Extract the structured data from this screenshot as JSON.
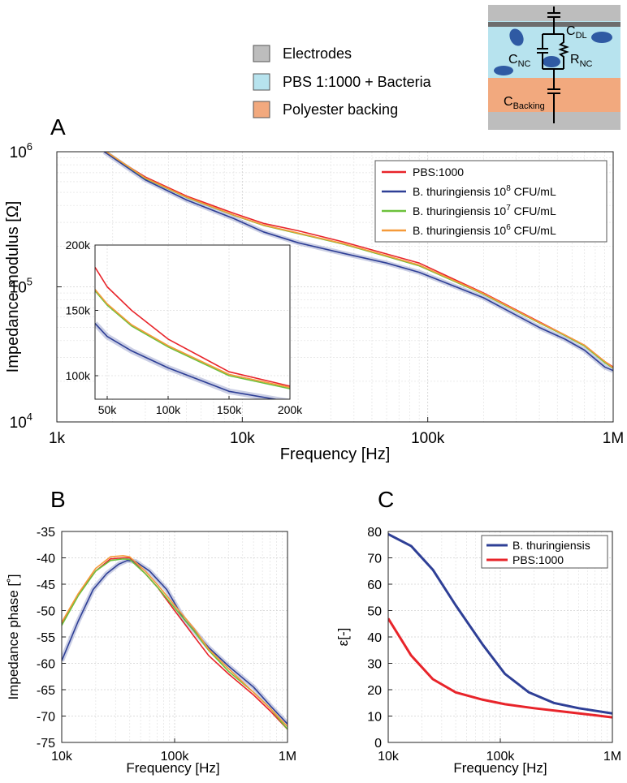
{
  "legend_top": {
    "items": [
      {
        "label": "Electrodes",
        "color": "#bdbdbd"
      },
      {
        "label": "PBS 1:1000 + Bacteria",
        "color": "#b7e3ee"
      },
      {
        "label": "Polyester backing",
        "color": "#f2a97e"
      }
    ]
  },
  "schematic": {
    "labels": {
      "cdl": {
        "base": "C",
        "sub": "DL"
      },
      "cnc": {
        "base": "C",
        "sub": "NC"
      },
      "rnc": {
        "base": "R",
        "sub": "NC"
      },
      "cbacking": {
        "base": "C",
        "sub": "Backing"
      }
    },
    "colors": {
      "electrode": "#bdbdbd",
      "pbs": "#b7e3ee",
      "backing": "#f2a97e",
      "bacteria": "#2f5aa3"
    }
  },
  "panel_letters": {
    "a": "A",
    "b": "B",
    "c": "C"
  },
  "chart_data": [
    {
      "id": "A",
      "type": "line",
      "xscale": "log",
      "yscale": "log",
      "xlabel": "Frequency [Hz]",
      "ylabel": "Impedance modulus [Ω]",
      "xlim": [
        1000,
        1000000
      ],
      "ylim": [
        10000,
        1000000
      ],
      "xticks": [
        {
          "v": 1000,
          "label": "1k"
        },
        {
          "v": 10000,
          "label": "10k"
        },
        {
          "v": 100000,
          "label": "100k"
        },
        {
          "v": 1000000,
          "label": "1M"
        }
      ],
      "yticks": [
        {
          "v": 10000,
          "base": "10",
          "exp": "4"
        },
        {
          "v": 100000,
          "base": "10",
          "exp": "5"
        },
        {
          "v": 1000000,
          "base": "10",
          "exp": "6"
        }
      ],
      "legend": [
        {
          "label": "PBS:1000",
          "color": "#e8242a"
        },
        {
          "label": "B. thuringiensis",
          "exp": "8",
          "unit": "CFU/mL",
          "color": "#2e3f96"
        },
        {
          "label": "B. thuringiensis",
          "exp": "7",
          "unit": "CFU/mL",
          "color": "#6cc13c"
        },
        {
          "label": "B. thuringiensis",
          "exp": "6",
          "unit": "CFU/mL",
          "color": "#f59a3a"
        }
      ],
      "series": [
        {
          "name": "PBS:1000",
          "color": "#e8242a",
          "points": [
            [
              1800,
              1000000
            ],
            [
              3000,
              650000
            ],
            [
              5000,
              470000
            ],
            [
              9000,
              350000
            ],
            [
              13000,
              295000
            ],
            [
              20000,
              260000
            ],
            [
              35000,
              215000
            ],
            [
              60000,
              175000
            ],
            [
              90000,
              150000
            ],
            [
              200000,
              90000
            ],
            [
              400000,
              55000
            ],
            [
              550000,
              44000
            ],
            [
              700000,
              37000
            ],
            [
              900000,
              28000
            ],
            [
              1000000,
              25500
            ]
          ]
        },
        {
          "name": "B. thuringiensis 10^8 CFU/mL",
          "color": "#2e3f96",
          "band": true,
          "points": [
            [
              1800,
              1000000
            ],
            [
              3000,
              620000
            ],
            [
              5000,
              440000
            ],
            [
              9000,
              320000
            ],
            [
              13000,
              255000
            ],
            [
              20000,
              212000
            ],
            [
              35000,
              177000
            ],
            [
              60000,
              150000
            ],
            [
              90000,
              128000
            ],
            [
              200000,
              83000
            ],
            [
              400000,
              50000
            ],
            [
              550000,
              41000
            ],
            [
              700000,
              34000
            ],
            [
              900000,
              25500
            ],
            [
              1000000,
              24000
            ]
          ]
        },
        {
          "name": "B. thuringiensis 10^7 CFU/mL",
          "color": "#6cc13c",
          "points": [
            [
              1850,
              1000000
            ],
            [
              3000,
              635000
            ],
            [
              5000,
              460000
            ],
            [
              9000,
              338000
            ],
            [
              13000,
              285000
            ],
            [
              20000,
              248000
            ],
            [
              35000,
              207000
            ],
            [
              60000,
              168000
            ],
            [
              90000,
              143000
            ],
            [
              200000,
              88000
            ],
            [
              400000,
              54000
            ],
            [
              550000,
              43500
            ],
            [
              700000,
              36500
            ],
            [
              900000,
              27500
            ],
            [
              1000000,
              25000
            ]
          ]
        },
        {
          "name": "B. thuringiensis 10^6 CFU/mL",
          "color": "#f59a3a",
          "points": [
            [
              1850,
              1000000
            ],
            [
              3000,
              640000
            ],
            [
              5000,
              462000
            ],
            [
              9000,
              340000
            ],
            [
              13000,
              287000
            ],
            [
              20000,
              250000
            ],
            [
              35000,
              209000
            ],
            [
              60000,
              170000
            ],
            [
              90000,
              145000
            ],
            [
              200000,
              89000
            ],
            [
              400000,
              54500
            ],
            [
              550000,
              44000
            ],
            [
              700000,
              37000
            ],
            [
              900000,
              28000
            ],
            [
              1000000,
              25200
            ]
          ]
        }
      ],
      "inset": {
        "xlim": [
          40000,
          200000
        ],
        "ylim": [
          82000,
          200000
        ],
        "xticks": [
          {
            "v": 50000,
            "label": "50k"
          },
          {
            "v": 100000,
            "label": "100k"
          },
          {
            "v": 150000,
            "label": "150k"
          },
          {
            "v": 200000,
            "label": "200k"
          }
        ],
        "yticks": [
          {
            "v": 100000,
            "label": "100k"
          },
          {
            "v": 150000,
            "label": "150k"
          },
          {
            "v": 200000,
            "label": "200k"
          }
        ],
        "series": [
          {
            "name": "PBS:1000",
            "color": "#e8242a",
            "points": [
              [
                40000,
                183000
              ],
              [
                50000,
                168000
              ],
              [
                70000,
                150000
              ],
              [
                100000,
                128000
              ],
              [
                150000,
                103000
              ],
              [
                200000,
                92000
              ]
            ]
          },
          {
            "name": "10^8",
            "color": "#2e3f96",
            "band": true,
            "points": [
              [
                40000,
                140000
              ],
              [
                50000,
                130000
              ],
              [
                70000,
                119000
              ],
              [
                100000,
                106000
              ],
              [
                150000,
                88000
              ],
              [
                200000,
                80000
              ]
            ]
          },
          {
            "name": "10^7",
            "color": "#6cc13c",
            "points": [
              [
                40000,
                165000
              ],
              [
                50000,
                154000
              ],
              [
                70000,
                138000
              ],
              [
                100000,
                122000
              ],
              [
                150000,
                100000
              ],
              [
                200000,
                90000
              ]
            ]
          },
          {
            "name": "10^6",
            "color": "#f59a3a",
            "points": [
              [
                40000,
                166000
              ],
              [
                50000,
                155000
              ],
              [
                70000,
                139000
              ],
              [
                100000,
                123000
              ],
              [
                150000,
                101000
              ],
              [
                200000,
                91000
              ]
            ]
          }
        ]
      }
    },
    {
      "id": "B",
      "type": "line",
      "xscale": "log",
      "xlabel": "Frequency [Hz]",
      "ylabel": "Impedance phase [˚]",
      "xlim": [
        10000,
        1000000
      ],
      "ylim": [
        -75,
        -35
      ],
      "xticks": [
        {
          "v": 10000,
          "label": "10k"
        },
        {
          "v": 100000,
          "label": "100k"
        },
        {
          "v": 1000000,
          "label": "1M"
        }
      ],
      "yticks": [
        {
          "v": -35,
          "label": "-35"
        },
        {
          "v": -40,
          "label": "-40"
        },
        {
          "v": -45,
          "label": "-45"
        },
        {
          "v": -50,
          "label": "-50"
        },
        {
          "v": -55,
          "label": "-55"
        },
        {
          "v": -60,
          "label": "-60"
        },
        {
          "v": -65,
          "label": "-65"
        },
        {
          "v": -70,
          "label": "-70"
        },
        {
          "v": -75,
          "label": "-75"
        }
      ],
      "series": [
        {
          "name": "PBS:1000",
          "color": "#e8242a",
          "points": [
            [
              10000,
              -52.5
            ],
            [
              14000,
              -47
            ],
            [
              20000,
              -42.5
            ],
            [
              27000,
              -40.2
            ],
            [
              35000,
              -40
            ],
            [
              40000,
              -40
            ],
            [
              55000,
              -43
            ],
            [
              70000,
              -45.5
            ],
            [
              100000,
              -50
            ],
            [
              150000,
              -55
            ],
            [
              200000,
              -58.5
            ],
            [
              300000,
              -62
            ],
            [
              500000,
              -66
            ],
            [
              700000,
              -69
            ],
            [
              1000000,
              -72.5
            ]
          ]
        },
        {
          "name": "10^8",
          "color": "#2e3f96",
          "band": true,
          "points": [
            [
              10000,
              -59.5
            ],
            [
              14000,
              -52
            ],
            [
              19000,
              -46
            ],
            [
              25000,
              -43
            ],
            [
              32000,
              -41.2
            ],
            [
              38000,
              -40.5
            ],
            [
              45000,
              -40.7
            ],
            [
              60000,
              -42.5
            ],
            [
              85000,
              -46
            ],
            [
              120000,
              -51.5
            ],
            [
              200000,
              -57
            ],
            [
              300000,
              -60.5
            ],
            [
              500000,
              -64.5
            ],
            [
              700000,
              -68
            ],
            [
              1000000,
              -71.5
            ]
          ]
        },
        {
          "name": "10^7",
          "color": "#6cc13c",
          "points": [
            [
              10000,
              -52.8
            ],
            [
              14000,
              -47.2
            ],
            [
              20000,
              -42.5
            ],
            [
              27000,
              -40.5
            ],
            [
              35000,
              -40.2
            ],
            [
              40000,
              -40.3
            ],
            [
              55000,
              -43
            ],
            [
              70000,
              -45.5
            ],
            [
              100000,
              -49.5
            ],
            [
              150000,
              -54
            ],
            [
              200000,
              -57.5
            ],
            [
              300000,
              -61.5
            ],
            [
              500000,
              -65.5
            ],
            [
              700000,
              -68.5
            ],
            [
              1000000,
              -72.5
            ]
          ]
        },
        {
          "name": "10^6",
          "color": "#f59a3a",
          "points": [
            [
              10000,
              -52.2
            ],
            [
              14000,
              -46.8
            ],
            [
              20000,
              -42
            ],
            [
              27000,
              -39.8
            ],
            [
              35000,
              -39.6
            ],
            [
              40000,
              -39.8
            ],
            [
              55000,
              -42.5
            ],
            [
              70000,
              -45
            ],
            [
              100000,
              -49
            ],
            [
              150000,
              -53.5
            ],
            [
              200000,
              -57.3
            ],
            [
              300000,
              -61
            ],
            [
              500000,
              -65.5
            ],
            [
              700000,
              -68.5
            ],
            [
              1000000,
              -72
            ]
          ]
        }
      ]
    },
    {
      "id": "C",
      "type": "line",
      "xscale": "log",
      "xlabel": "Frequency [Hz]",
      "ylabel": "ε[-]",
      "xlim": [
        10000,
        1000000
      ],
      "ylim": [
        0,
        80
      ],
      "xticks": [
        {
          "v": 10000,
          "label": "10k"
        },
        {
          "v": 100000,
          "label": "100k"
        },
        {
          "v": 1000000,
          "label": "1M"
        }
      ],
      "yticks": [
        {
          "v": 0,
          "label": "0"
        },
        {
          "v": 10,
          "label": "10"
        },
        {
          "v": 20,
          "label": "20"
        },
        {
          "v": 30,
          "label": "30"
        },
        {
          "v": 40,
          "label": "40"
        },
        {
          "v": 50,
          "label": "50"
        },
        {
          "v": 60,
          "label": "60"
        },
        {
          "v": 70,
          "label": "70"
        },
        {
          "v": 80,
          "label": "80"
        }
      ],
      "legend": [
        {
          "label": "B. thuringiensis",
          "color": "#2e3f96"
        },
        {
          "label": "PBS:1000",
          "color": "#e8242a"
        }
      ],
      "series": [
        {
          "name": "B. thuringiensis",
          "color": "#2e3f96",
          "points": [
            [
              10000,
              79
            ],
            [
              16000,
              74.5
            ],
            [
              25000,
              65.5
            ],
            [
              40000,
              52
            ],
            [
              70000,
              37
            ],
            [
              110000,
              26
            ],
            [
              180000,
              19
            ],
            [
              300000,
              15
            ],
            [
              500000,
              13
            ],
            [
              1000000,
              11
            ]
          ]
        },
        {
          "name": "PBS:1000",
          "color": "#e8242a",
          "points": [
            [
              10000,
              47
            ],
            [
              16000,
              33
            ],
            [
              25000,
              24
            ],
            [
              40000,
              19
            ],
            [
              70000,
              16.2
            ],
            [
              110000,
              14.5
            ],
            [
              200000,
              13
            ],
            [
              400000,
              11.5
            ],
            [
              700000,
              10.3
            ],
            [
              1000000,
              9.5
            ]
          ]
        }
      ]
    }
  ]
}
